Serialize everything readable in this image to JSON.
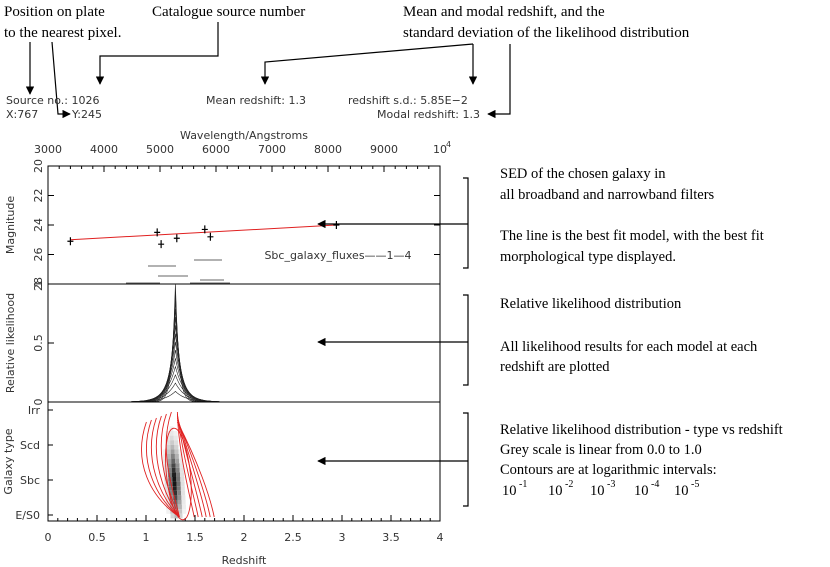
{
  "annotations": {
    "position": [
      "Position on plate",
      "to the nearest pixel."
    ],
    "catalogue": "Catalogue source number",
    "mean_modal": [
      "Mean and modal redshift, and the",
      "standard deviation of the likelihood distribution"
    ],
    "sed": [
      "SED of the chosen galaxy in",
      "all broadband and narrowband  filters",
      "",
      "The line is the best fit model, with the  best fit",
      "morphological type displayed."
    ],
    "likelihood": [
      "Relative likelihood distribution",
      "",
      "All likelihood results for each model at each",
      "redshift are plotted"
    ],
    "type_vs_z": [
      "Relative likelihood distribution - type vs redshift",
      "Grey scale is linear from 0.0 to 1.0",
      "Contours are at logarithmic intervals:"
    ],
    "contour_levels": [
      {
        "base": "10",
        "exp": "-1"
      },
      {
        "base": "10",
        "exp": "-2"
      },
      {
        "base": "10",
        "exp": "-3"
      },
      {
        "base": "10",
        "exp": "-4"
      },
      {
        "base": "10",
        "exp": "-5"
      }
    ]
  },
  "header": {
    "source_no": "Source no.: 1026",
    "x": "X:767",
    "y": "Y:245",
    "mean_redshift": "Mean redshift: 1.3",
    "sd": "redshift s.d.: 5.85E−2",
    "modal": "Modal redshift: 1.3"
  },
  "chart_data": [
    {
      "type": "scatter",
      "panel": "sed",
      "xlabel": "Wavelength/Angstroms",
      "ylabel": "Magnitude",
      "x_ticks": [
        "3000",
        "4000",
        "5000",
        "6000",
        "7000",
        "8000",
        "9000",
        "10"
      ],
      "x_tick_sup": "4",
      "y_ticks": [
        "20",
        "22",
        "24",
        "26",
        "28"
      ],
      "ylim": [
        28,
        20
      ],
      "model_label": "Sbc_galaxy_fluxes——1—4",
      "points": [
        {
          "x": 3400,
          "y": 25.1
        },
        {
          "x": 4950,
          "y": 24.5
        },
        {
          "x": 5020,
          "y": 25.3
        },
        {
          "x": 5300,
          "y": 24.9
        },
        {
          "x": 5800,
          "y": 24.3
        },
        {
          "x": 5900,
          "y": 24.8
        },
        {
          "x": 8150,
          "y": 24.0
        }
      ],
      "model_line": [
        {
          "x": 3400,
          "y": 25.0
        },
        {
          "x": 8150,
          "y": 24.0
        }
      ]
    },
    {
      "type": "line",
      "panel": "likelihood",
      "ylabel": "Relative likelihood",
      "y_ticks": [
        "0",
        "0.5",
        "1"
      ],
      "ylim": [
        0,
        1
      ],
      "peak_redshift": 1.3
    },
    {
      "type": "heatmap",
      "panel": "type_vs_redshift",
      "xlabel": "Redshift",
      "ylabel": "Galaxy type",
      "x_ticks": [
        "0",
        "0.5",
        "1",
        "1.5",
        "2",
        "2.5",
        "3",
        "3.5",
        "4"
      ],
      "xlim": [
        0,
        4
      ],
      "y_categories": [
        "E/S0",
        "Sbc",
        "Scd",
        "Irr"
      ],
      "contour_color": "#e02020",
      "greyscale_range": [
        0.0,
        1.0
      ]
    }
  ],
  "colors": {
    "model_line": "#e02020",
    "contour": "#e02020",
    "ink": "#000000"
  }
}
